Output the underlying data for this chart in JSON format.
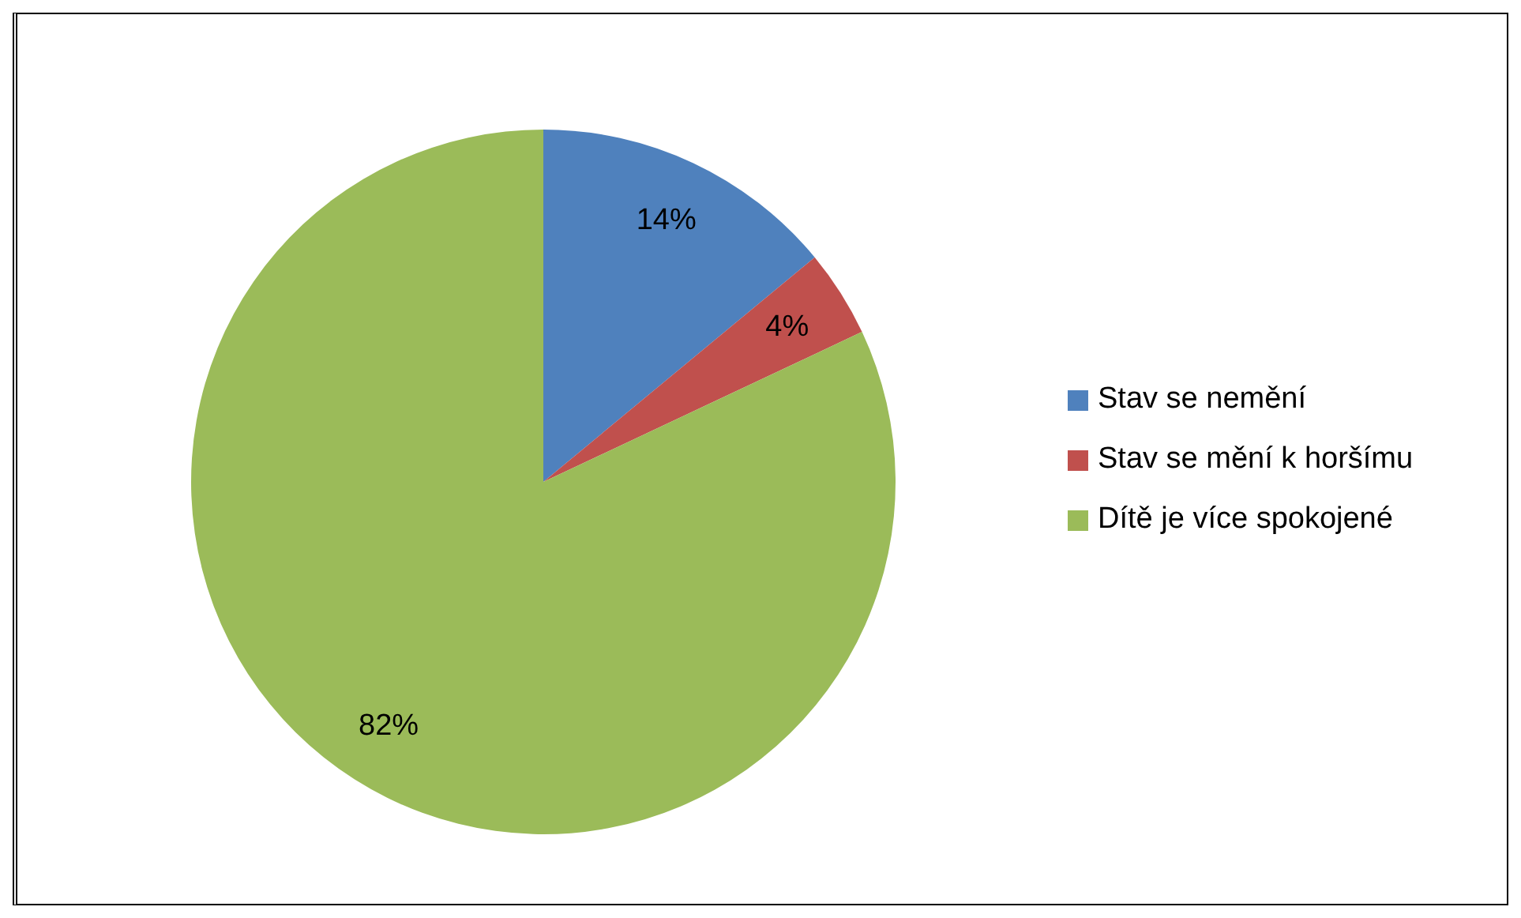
{
  "chart_data": {
    "type": "pie",
    "categories": [
      "Stav se nemění",
      "Stav se mění k horšímu",
      "Dítě je více spokojené"
    ],
    "values": [
      14,
      4,
      82
    ],
    "colors": [
      "#4f81bd",
      "#c0504d",
      "#9bbb59"
    ],
    "value_labels": [
      "14%",
      "4%",
      "82%"
    ],
    "legend": "right"
  }
}
